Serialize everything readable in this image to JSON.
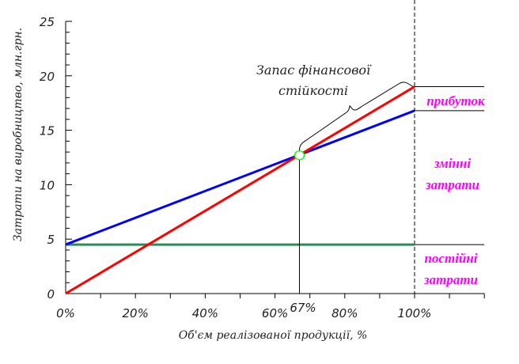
{
  "chart_data": {
    "type": "line",
    "xlabel": "Об'єм реалізованої продукції, %",
    "ylabel": "Затрати на виробництво, млн.грн.",
    "xlim": [
      0,
      120
    ],
    "ylim": [
      0,
      25
    ],
    "x_ticks": [
      "0%",
      "20%",
      "40%",
      "60%",
      "80%",
      "100%"
    ],
    "y_ticks": [
      "0",
      "5",
      "10",
      "15",
      "20",
      "25"
    ],
    "grid": false,
    "series": [
      {
        "key": "revenue",
        "x": [
          0,
          100
        ],
        "y": [
          0,
          19
        ],
        "color": "#ff0000"
      },
      {
        "key": "total_costs",
        "x": [
          0,
          100
        ],
        "y": [
          4.5,
          16.8
        ],
        "color": "#0000ff"
      },
      {
        "key": "fixed_costs",
        "x": [
          0,
          100
        ],
        "y": [
          4.5,
          4.5
        ],
        "color": "#2e8b57"
      }
    ],
    "break_even": {
      "x": 67,
      "y": 12.7,
      "label": "67%",
      "marker_color": "#00ff00"
    },
    "annotations": {
      "safety_margin": [
        "Запас фінансової",
        "стійкості"
      ],
      "profit": "прибуток",
      "variable_costs": [
        "змінні",
        "затрати"
      ],
      "fixed_costs": [
        "постійні",
        "затрати"
      ]
    },
    "label_color": "#ff00ff"
  }
}
